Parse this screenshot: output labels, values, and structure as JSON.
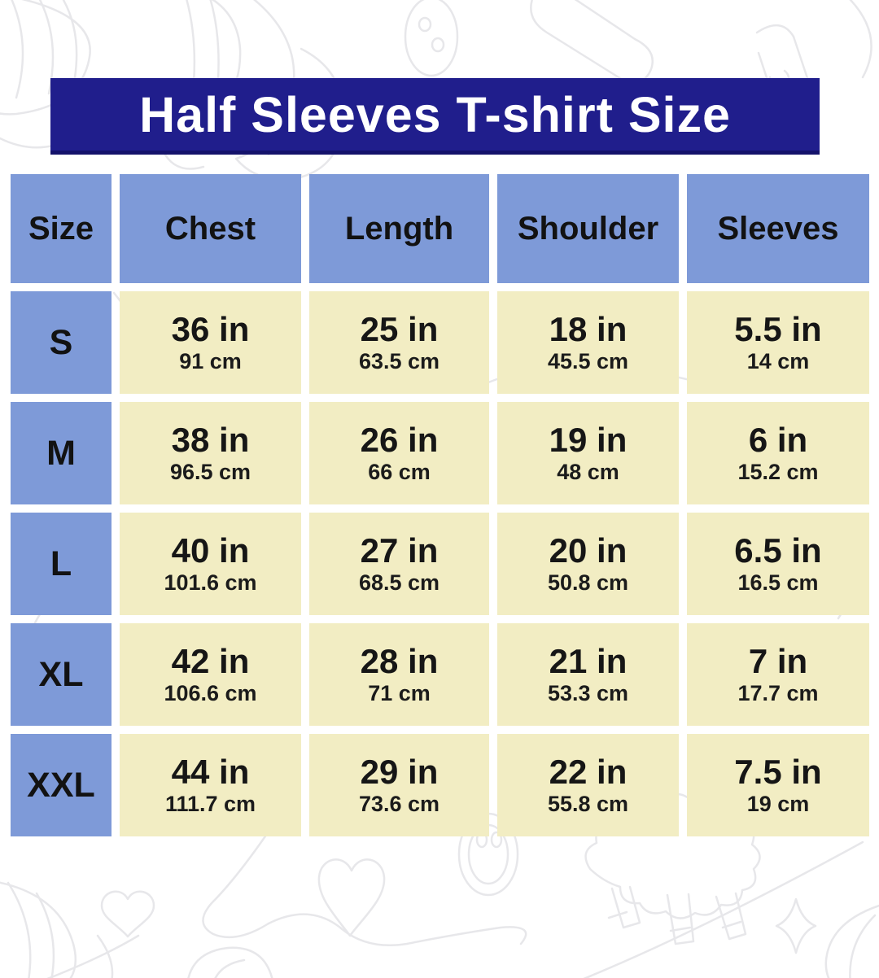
{
  "title": "Half Sleeves T-shirt Size",
  "colors": {
    "title_bg": "#201e8c",
    "title_edge": "#14126b",
    "title_text": "#ffffff",
    "header_bg": "#7e9ad8",
    "cell_bg": "#f2edc3",
    "text": "#141414",
    "doodle": "#e7e7ea"
  },
  "table": {
    "columns": [
      "Size",
      "Chest",
      "Length",
      "Shoulder",
      "Sleeves"
    ],
    "rows": [
      {
        "size": "S",
        "measurements": [
          {
            "inches": "36 in",
            "cm": "91 cm"
          },
          {
            "inches": "25 in",
            "cm": "63.5 cm"
          },
          {
            "inches": "18 in",
            "cm": "45.5 cm"
          },
          {
            "inches": "5.5 in",
            "cm": "14 cm"
          }
        ]
      },
      {
        "size": "M",
        "measurements": [
          {
            "inches": "38 in",
            "cm": "96.5 cm"
          },
          {
            "inches": "26 in",
            "cm": "66 cm"
          },
          {
            "inches": "19 in",
            "cm": "48 cm"
          },
          {
            "inches": "6 in",
            "cm": "15.2 cm"
          }
        ]
      },
      {
        "size": "L",
        "measurements": [
          {
            "inches": "40 in",
            "cm": "101.6 cm"
          },
          {
            "inches": "27 in",
            "cm": "68.5 cm"
          },
          {
            "inches": "20 in",
            "cm": "50.8 cm"
          },
          {
            "inches": "6.5 in",
            "cm": "16.5 cm"
          }
        ]
      },
      {
        "size": "XL",
        "measurements": [
          {
            "inches": "42 in",
            "cm": "106.6 cm"
          },
          {
            "inches": "28 in",
            "cm": "71 cm"
          },
          {
            "inches": "21 in",
            "cm": "53.3 cm"
          },
          {
            "inches": "7 in",
            "cm": "17.7 cm"
          }
        ]
      },
      {
        "size": "XXL",
        "measurements": [
          {
            "inches": "44 in",
            "cm": "111.7 cm"
          },
          {
            "inches": "29 in",
            "cm": "73.6 cm"
          },
          {
            "inches": "22 in",
            "cm": "55.8 cm"
          },
          {
            "inches": "7.5 in",
            "cm": "19 cm"
          }
        ]
      }
    ]
  },
  "chart_data": {
    "type": "table",
    "title": "Half Sleeves T-shirt Size",
    "columns": [
      "Size",
      "Chest",
      "Length",
      "Shoulder",
      "Sleeves"
    ],
    "rows": [
      [
        "S",
        "36 in / 91 cm",
        "25 in / 63.5 cm",
        "18 in / 45.5 cm",
        "5.5 in / 14 cm"
      ],
      [
        "M",
        "38 in / 96.5 cm",
        "26 in / 66 cm",
        "19 in / 48 cm",
        "6 in / 15.2 cm"
      ],
      [
        "L",
        "40 in / 101.6 cm",
        "27 in / 68.5 cm",
        "20 in / 50.8 cm",
        "6.5 in / 16.5 cm"
      ],
      [
        "XL",
        "42 in / 106.6 cm",
        "28 in / 71 cm",
        "21 in / 53.3 cm",
        "7 in / 17.7 cm"
      ],
      [
        "XXL",
        "44 in / 111.7 cm",
        "29 in / 73.6 cm",
        "22 in / 55.8 cm",
        "7.5 in / 19 cm"
      ]
    ]
  }
}
